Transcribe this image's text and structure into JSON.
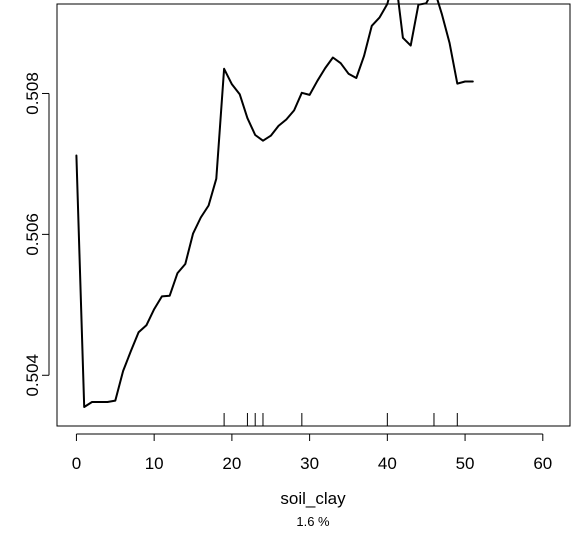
{
  "chart_data": {
    "type": "line",
    "title": "",
    "xlabel": "soil_clay",
    "subtitle": "1.6 %",
    "ylabel": "",
    "xlim": [
      -2.5,
      63.5
    ],
    "ylim": [
      50.328,
      50.927
    ],
    "x_ticks": [
      0,
      10,
      20,
      30,
      40,
      50,
      60
    ],
    "x_tick_labels": [
      "0",
      "10",
      "20",
      "30",
      "40",
      "50",
      "60"
    ],
    "y_ticks": [
      0.504,
      0.506,
      0.508
    ],
    "y_tick_labels": [
      "0.504",
      "0.506",
      "0.508"
    ],
    "grid": false,
    "rug": [
      19,
      22,
      23,
      24,
      29,
      40,
      46,
      49
    ],
    "series": [
      {
        "color": "#000000",
        "points": [
          [
            0,
            0.50712
          ],
          [
            1,
            0.50355
          ],
          [
            2,
            0.50362
          ],
          [
            3,
            0.50362
          ],
          [
            4,
            0.50362
          ],
          [
            5,
            0.50364
          ],
          [
            6,
            0.50406
          ],
          [
            7,
            0.50434
          ],
          [
            8,
            0.50461
          ],
          [
            9,
            0.50471
          ],
          [
            10,
            0.50494
          ],
          [
            11,
            0.50512
          ],
          [
            12,
            0.50513
          ],
          [
            13,
            0.50545
          ],
          [
            14,
            0.50558
          ],
          [
            15,
            0.50601
          ],
          [
            16,
            0.50624
          ],
          [
            17,
            0.50641
          ],
          [
            18,
            0.50679
          ],
          [
            19,
            0.50835
          ],
          [
            20,
            0.50813
          ],
          [
            21,
            0.50799
          ],
          [
            22,
            0.50765
          ],
          [
            23,
            0.50741
          ],
          [
            24,
            0.50733
          ],
          [
            25,
            0.5074
          ],
          [
            26,
            0.50754
          ],
          [
            27,
            0.50763
          ],
          [
            28,
            0.50776
          ],
          [
            29,
            0.50801
          ],
          [
            30,
            0.50798
          ],
          [
            31,
            0.50818
          ],
          [
            32,
            0.50836
          ],
          [
            33,
            0.50851
          ],
          [
            34,
            0.50843
          ],
          [
            35,
            0.50828
          ],
          [
            36,
            0.50822
          ],
          [
            37,
            0.50853
          ],
          [
            38,
            0.50896
          ],
          [
            39,
            0.50908
          ],
          [
            40,
            0.50927
          ],
          [
            41,
            0.50969
          ],
          [
            42,
            0.50879
          ],
          [
            43,
            0.50868
          ],
          [
            44,
            0.50926
          ],
          [
            45,
            0.50928
          ],
          [
            46,
            0.50949
          ],
          [
            47,
            0.50913
          ],
          [
            48,
            0.50872
          ],
          [
            49,
            0.50814
          ],
          [
            50,
            0.50817
          ],
          [
            51,
            0.50817
          ]
        ]
      }
    ]
  }
}
